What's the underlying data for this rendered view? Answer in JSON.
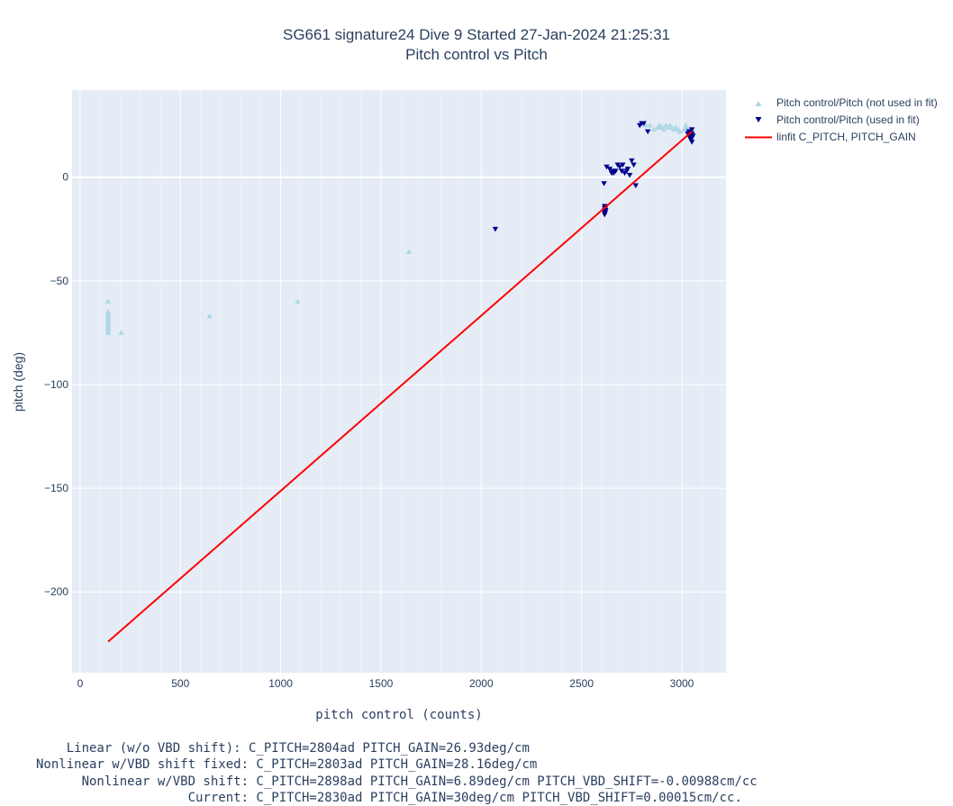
{
  "chart_data": {
    "type": "scatter",
    "title": "SG661 signature24 Dive 9 Started 27-Jan-2024 21:25:31",
    "subtitle": "Pitch control vs Pitch",
    "xlabel": "pitch control (counts)",
    "ylabel": "pitch (deg)",
    "xlim": [
      -40,
      3220
    ],
    "ylim": [
      -239,
      42
    ],
    "x_ticks": [
      0,
      500,
      1000,
      1500,
      2000,
      2500,
      3000
    ],
    "y_ticks": [
      0,
      -50,
      -100,
      -150,
      -200
    ],
    "x_tick_labels": [
      "0",
      "500",
      "1000",
      "1500",
      "2000",
      "2500",
      "3000"
    ],
    "y_tick_labels": [
      "0",
      "−50",
      "−100",
      "−150",
      "−200"
    ],
    "grid": true,
    "legend_position": "top-right-outside",
    "series": [
      {
        "name": "Pitch control/Pitch (not used in fit)",
        "marker": "triangle-up",
        "color": "#add8e6",
        "points": [
          [
            140,
            -60
          ],
          [
            140,
            -65
          ],
          [
            140,
            -66
          ],
          [
            140,
            -67
          ],
          [
            140,
            -68
          ],
          [
            140,
            -69
          ],
          [
            140,
            -70
          ],
          [
            140,
            -71
          ],
          [
            140,
            -72
          ],
          [
            140,
            -73
          ],
          [
            140,
            -74
          ],
          [
            140,
            -75
          ],
          [
            205,
            -75
          ],
          [
            645,
            -67
          ],
          [
            1085,
            -60
          ],
          [
            1640,
            -36
          ],
          [
            2820,
            25
          ],
          [
            2840,
            25
          ],
          [
            2860,
            23
          ],
          [
            2880,
            24
          ],
          [
            2890,
            25
          ],
          [
            2900,
            24
          ],
          [
            2910,
            23
          ],
          [
            2920,
            25
          ],
          [
            2930,
            24
          ],
          [
            2940,
            25
          ],
          [
            2950,
            24
          ],
          [
            2960,
            23
          ],
          [
            2970,
            24
          ],
          [
            2980,
            23
          ],
          [
            2990,
            22
          ],
          [
            3010,
            23
          ],
          [
            3020,
            25
          ],
          [
            3025,
            24
          ],
          [
            3030,
            23
          ]
        ]
      },
      {
        "name": "Pitch control/Pitch (used in fit)",
        "marker": "triangle-down",
        "color": "#00008b",
        "points": [
          [
            2615,
            -14
          ],
          [
            2615,
            -15
          ],
          [
            2615,
            -16
          ],
          [
            2615,
            -17
          ],
          [
            2615,
            -18
          ],
          [
            2618,
            -15
          ],
          [
            2618,
            -17
          ],
          [
            2620,
            -16
          ],
          [
            2612,
            -3
          ],
          [
            2625,
            5
          ],
          [
            2640,
            4
          ],
          [
            2650,
            2
          ],
          [
            2655,
            3
          ],
          [
            2660,
            2
          ],
          [
            2670,
            3
          ],
          [
            2680,
            6
          ],
          [
            2690,
            5
          ],
          [
            2700,
            3
          ],
          [
            2705,
            6
          ],
          [
            2715,
            2
          ],
          [
            2725,
            3
          ],
          [
            2730,
            4
          ],
          [
            2740,
            1
          ],
          [
            2750,
            8
          ],
          [
            2760,
            6
          ],
          [
            2770,
            -4
          ],
          [
            2070,
            -25
          ],
          [
            2790,
            25
          ],
          [
            2800,
            26
          ],
          [
            2810,
            26
          ],
          [
            2830,
            22
          ],
          [
            3030,
            21
          ],
          [
            3035,
            20
          ],
          [
            3035,
            22
          ],
          [
            3040,
            19
          ],
          [
            3040,
            21
          ],
          [
            3045,
            18
          ],
          [
            3045,
            20
          ],
          [
            3045,
            22
          ],
          [
            3050,
            17
          ],
          [
            3050,
            19
          ],
          [
            3050,
            21
          ],
          [
            3050,
            23
          ],
          [
            3055,
            20
          ]
        ]
      },
      {
        "name": "linfit C_PITCH, PITCH_GAIN",
        "mode": "line",
        "color": "#ff0000",
        "points": [
          [
            140,
            -224
          ],
          [
            3050,
            22
          ]
        ]
      }
    ],
    "annotations": [
      "    Linear (w/o VBD shift): C_PITCH=2804ad PITCH_GAIN=26.93deg/cm",
      "Nonlinear w/VBD shift fixed: C_PITCH=2803ad PITCH_GAIN=28.16deg/cm",
      "      Nonlinear w/VBD shift: C_PITCH=2898ad PITCH_GAIN=6.89deg/cm PITCH_VBD_SHIFT=-0.00988cm/cc",
      "                    Current: C_PITCH=2830ad PITCH_GAIN=30deg/cm PITCH_VBD_SHIFT=0.00015cm/cc."
    ]
  },
  "colors": {
    "plot_bg": "#e5ecf6",
    "grid": "#ffffff",
    "text": "#2a3f5f"
  }
}
